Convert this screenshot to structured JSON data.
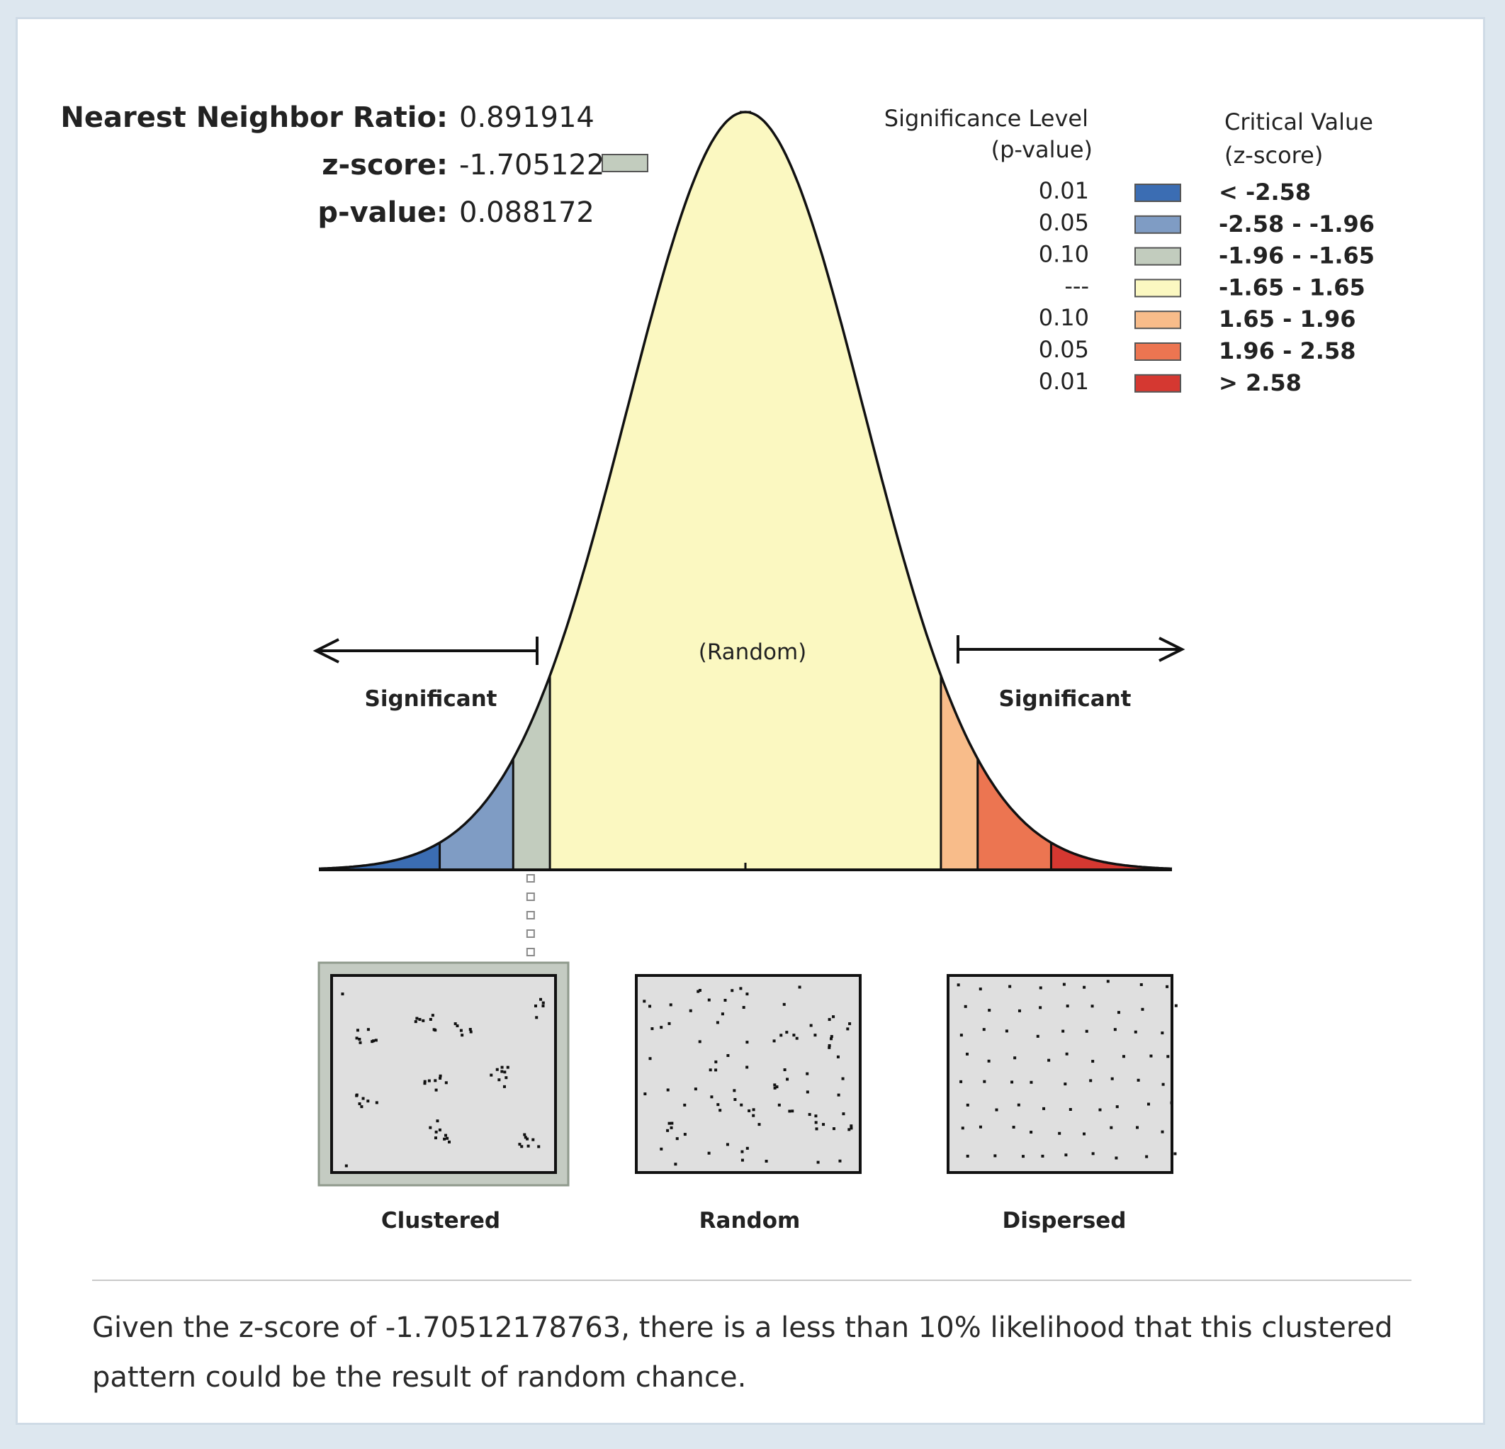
{
  "stats": {
    "nnr_label": "Nearest Neighbor Ratio:",
    "nnr_value": "0.891914",
    "z_label": "z-score:",
    "z_value": "-1.705122",
    "p_label": "p-value:",
    "p_value": "0.088172",
    "z_numeric": -1.705122
  },
  "legend": {
    "sig_header_1": "Significance Level",
    "sig_header_2": "(p-value)",
    "crit_header_1": "Critical Value",
    "crit_header_2": "(z-score)",
    "rows": [
      {
        "p": "0.01",
        "range": "< -2.58",
        "color": "#3b6db3"
      },
      {
        "p": "0.05",
        "range": "-2.58 - -1.96",
        "color": "#7f9cc4"
      },
      {
        "p": "0.10",
        "range": "-1.96 - -1.65",
        "color": "#c2ccbe"
      },
      {
        "p": "---",
        "range": "-1.65 - 1.65",
        "color": "#fbf8c1"
      },
      {
        "p": "0.10",
        "range": "1.65 - 1.96",
        "color": "#f8bc8a"
      },
      {
        "p": "0.05",
        "range": "1.96 - 2.58",
        "color": "#ec7551"
      },
      {
        "p": "0.01",
        "range": "> 2.58",
        "color": "#d53831"
      }
    ]
  },
  "curve": {
    "random_label": "(Random)",
    "left_significant": "Significant",
    "right_significant": "Significant",
    "zmin": -3.6,
    "zmax": 3.6,
    "breaks": [
      -2.58,
      -1.96,
      -1.65,
      1.65,
      1.96,
      2.58
    ]
  },
  "patterns": {
    "clustered": "Clustered",
    "random": "Random",
    "dispersed": "Dispersed",
    "highlighted": "clustered"
  },
  "summary": "Given the z-score of -1.70512178763, there is a less than 10% likelihood that this clustered pattern could be the result of random chance."
}
